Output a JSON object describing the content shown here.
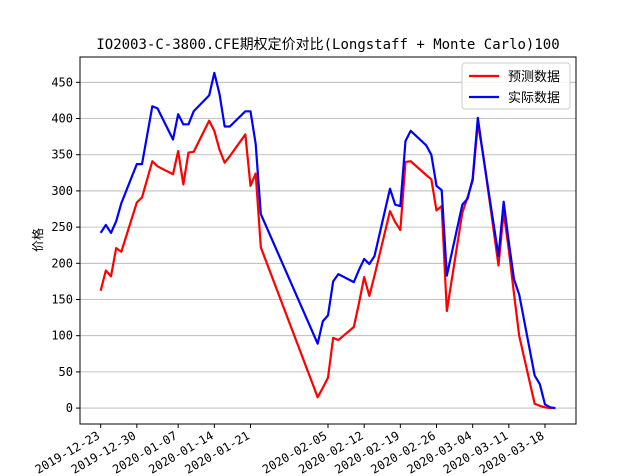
{
  "chart_data": {
    "type": "line",
    "title": "IO2003-C-3800.CFE期权定价对比(Longstaff + Monte Carlo)100",
    "xlabel": "",
    "ylabel": "价格",
    "ylim": [
      -22,
      485
    ],
    "yticks": [
      0,
      50,
      100,
      150,
      200,
      250,
      300,
      350,
      400,
      450
    ],
    "grid": "horizontal",
    "legend_position": "top-right",
    "x_tick_labels": [
      "2019-12-23",
      "2019-12-30",
      "2020-01-07",
      "2020-01-14",
      "2020-01-21",
      "2020-02-05",
      "2020-02-12",
      "2020-02-19",
      "2020-02-26",
      "2020-03-04",
      "2020-03-11",
      "2020-03-18"
    ],
    "x": [
      "2019-12-23",
      "2019-12-24",
      "2019-12-25",
      "2019-12-26",
      "2019-12-27",
      "2019-12-30",
      "2019-12-31",
      "2020-01-02",
      "2020-01-03",
      "2020-01-06",
      "2020-01-07",
      "2020-01-08",
      "2020-01-09",
      "2020-01-10",
      "2020-01-13",
      "2020-01-14",
      "2020-01-15",
      "2020-01-16",
      "2020-01-17",
      "2020-01-20",
      "2020-01-21",
      "2020-01-22",
      "2020-01-23",
      "2020-02-03",
      "2020-02-04",
      "2020-02-05",
      "2020-02-06",
      "2020-02-07",
      "2020-02-10",
      "2020-02-11",
      "2020-02-12",
      "2020-02-13",
      "2020-02-14",
      "2020-02-17",
      "2020-02-18",
      "2020-02-19",
      "2020-02-20",
      "2020-02-21",
      "2020-02-24",
      "2020-02-25",
      "2020-02-26",
      "2020-02-27",
      "2020-02-28",
      "2020-03-02",
      "2020-03-03",
      "2020-03-04",
      "2020-03-05",
      "2020-03-06",
      "2020-03-09",
      "2020-03-10",
      "2020-03-11",
      "2020-03-12",
      "2020-03-13",
      "2020-03-16",
      "2020-03-17",
      "2020-03-18",
      "2020-03-19",
      "2020-03-20"
    ],
    "series": [
      {
        "name": "预测数据",
        "color": "#ff0000",
        "values": [
          162,
          190,
          182,
          221,
          216,
          284,
          291,
          341,
          334,
          323,
          355,
          309,
          353,
          354,
          397,
          383,
          357,
          339,
          348,
          378,
          307,
          324,
          222,
          15,
          28,
          42,
          97,
          94,
          112,
          145,
          181,
          155,
          183,
          272,
          257,
          246,
          340,
          341,
          322,
          316,
          273,
          279,
          134,
          270,
          291,
          314,
          393,
          352,
          197,
          271,
          218,
          158,
          100,
          6,
          3,
          1,
          0,
          0
        ]
      },
      {
        "name": "实际数据",
        "color": "#0000ff",
        "values": [
          242,
          253,
          242,
          258,
          283,
          337,
          337,
          417,
          414,
          371,
          406,
          392,
          392,
          410,
          432,
          463,
          434,
          389,
          389,
          410,
          410,
          365,
          268,
          89,
          120,
          128,
          175,
          185,
          174,
          191,
          206,
          199,
          210,
          303,
          281,
          279,
          369,
          383,
          363,
          350,
          307,
          301,
          183,
          281,
          289,
          317,
          401,
          350,
          210,
          285,
          229,
          178,
          157,
          45,
          33,
          5,
          1,
          0
        ]
      }
    ]
  }
}
